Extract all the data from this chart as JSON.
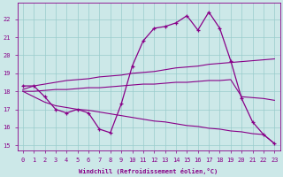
{
  "xlabel": "Windchill (Refroidissement éolien,°C)",
  "bg_color": "#cce8e8",
  "line_color": "#880088",
  "grid_color": "#99cccc",
  "x_hours": [
    0,
    1,
    2,
    3,
    4,
    5,
    6,
    7,
    8,
    9,
    10,
    11,
    12,
    13,
    14,
    15,
    16,
    17,
    18,
    19,
    20,
    21,
    22,
    23
  ],
  "temp_line": [
    18.3,
    18.3,
    17.7,
    17.0,
    16.8,
    17.0,
    16.8,
    15.9,
    15.7,
    17.3,
    19.4,
    20.8,
    21.5,
    21.6,
    21.8,
    22.2,
    21.4,
    22.4,
    21.5,
    19.7,
    17.6,
    16.3,
    15.6,
    15.1
  ],
  "upper_reg": [
    18.1,
    18.3,
    18.4,
    18.5,
    18.6,
    18.65,
    18.7,
    18.8,
    18.85,
    18.9,
    19.0,
    19.05,
    19.1,
    19.2,
    19.3,
    19.35,
    19.4,
    19.5,
    19.55,
    19.6,
    19.65,
    19.7,
    19.75,
    19.8
  ],
  "middle_reg": [
    18.0,
    18.0,
    18.05,
    18.1,
    18.1,
    18.15,
    18.2,
    18.2,
    18.25,
    18.3,
    18.35,
    18.4,
    18.4,
    18.45,
    18.5,
    18.5,
    18.55,
    18.6,
    18.6,
    18.65,
    17.7,
    17.65,
    17.6,
    17.5
  ],
  "lower_reg": [
    18.0,
    17.7,
    17.4,
    17.2,
    17.1,
    17.0,
    16.95,
    16.85,
    16.75,
    16.65,
    16.55,
    16.45,
    16.35,
    16.3,
    16.2,
    16.1,
    16.05,
    15.95,
    15.9,
    15.8,
    15.75,
    15.65,
    15.6,
    15.1
  ],
  "ylim": [
    14.7,
    22.9
  ],
  "yticks": [
    15,
    16,
    17,
    18,
    19,
    20,
    21,
    22
  ],
  "xticks": [
    0,
    1,
    2,
    3,
    4,
    5,
    6,
    7,
    8,
    9,
    10,
    11,
    12,
    13,
    14,
    15,
    16,
    17,
    18,
    19,
    20,
    21,
    22,
    23
  ]
}
